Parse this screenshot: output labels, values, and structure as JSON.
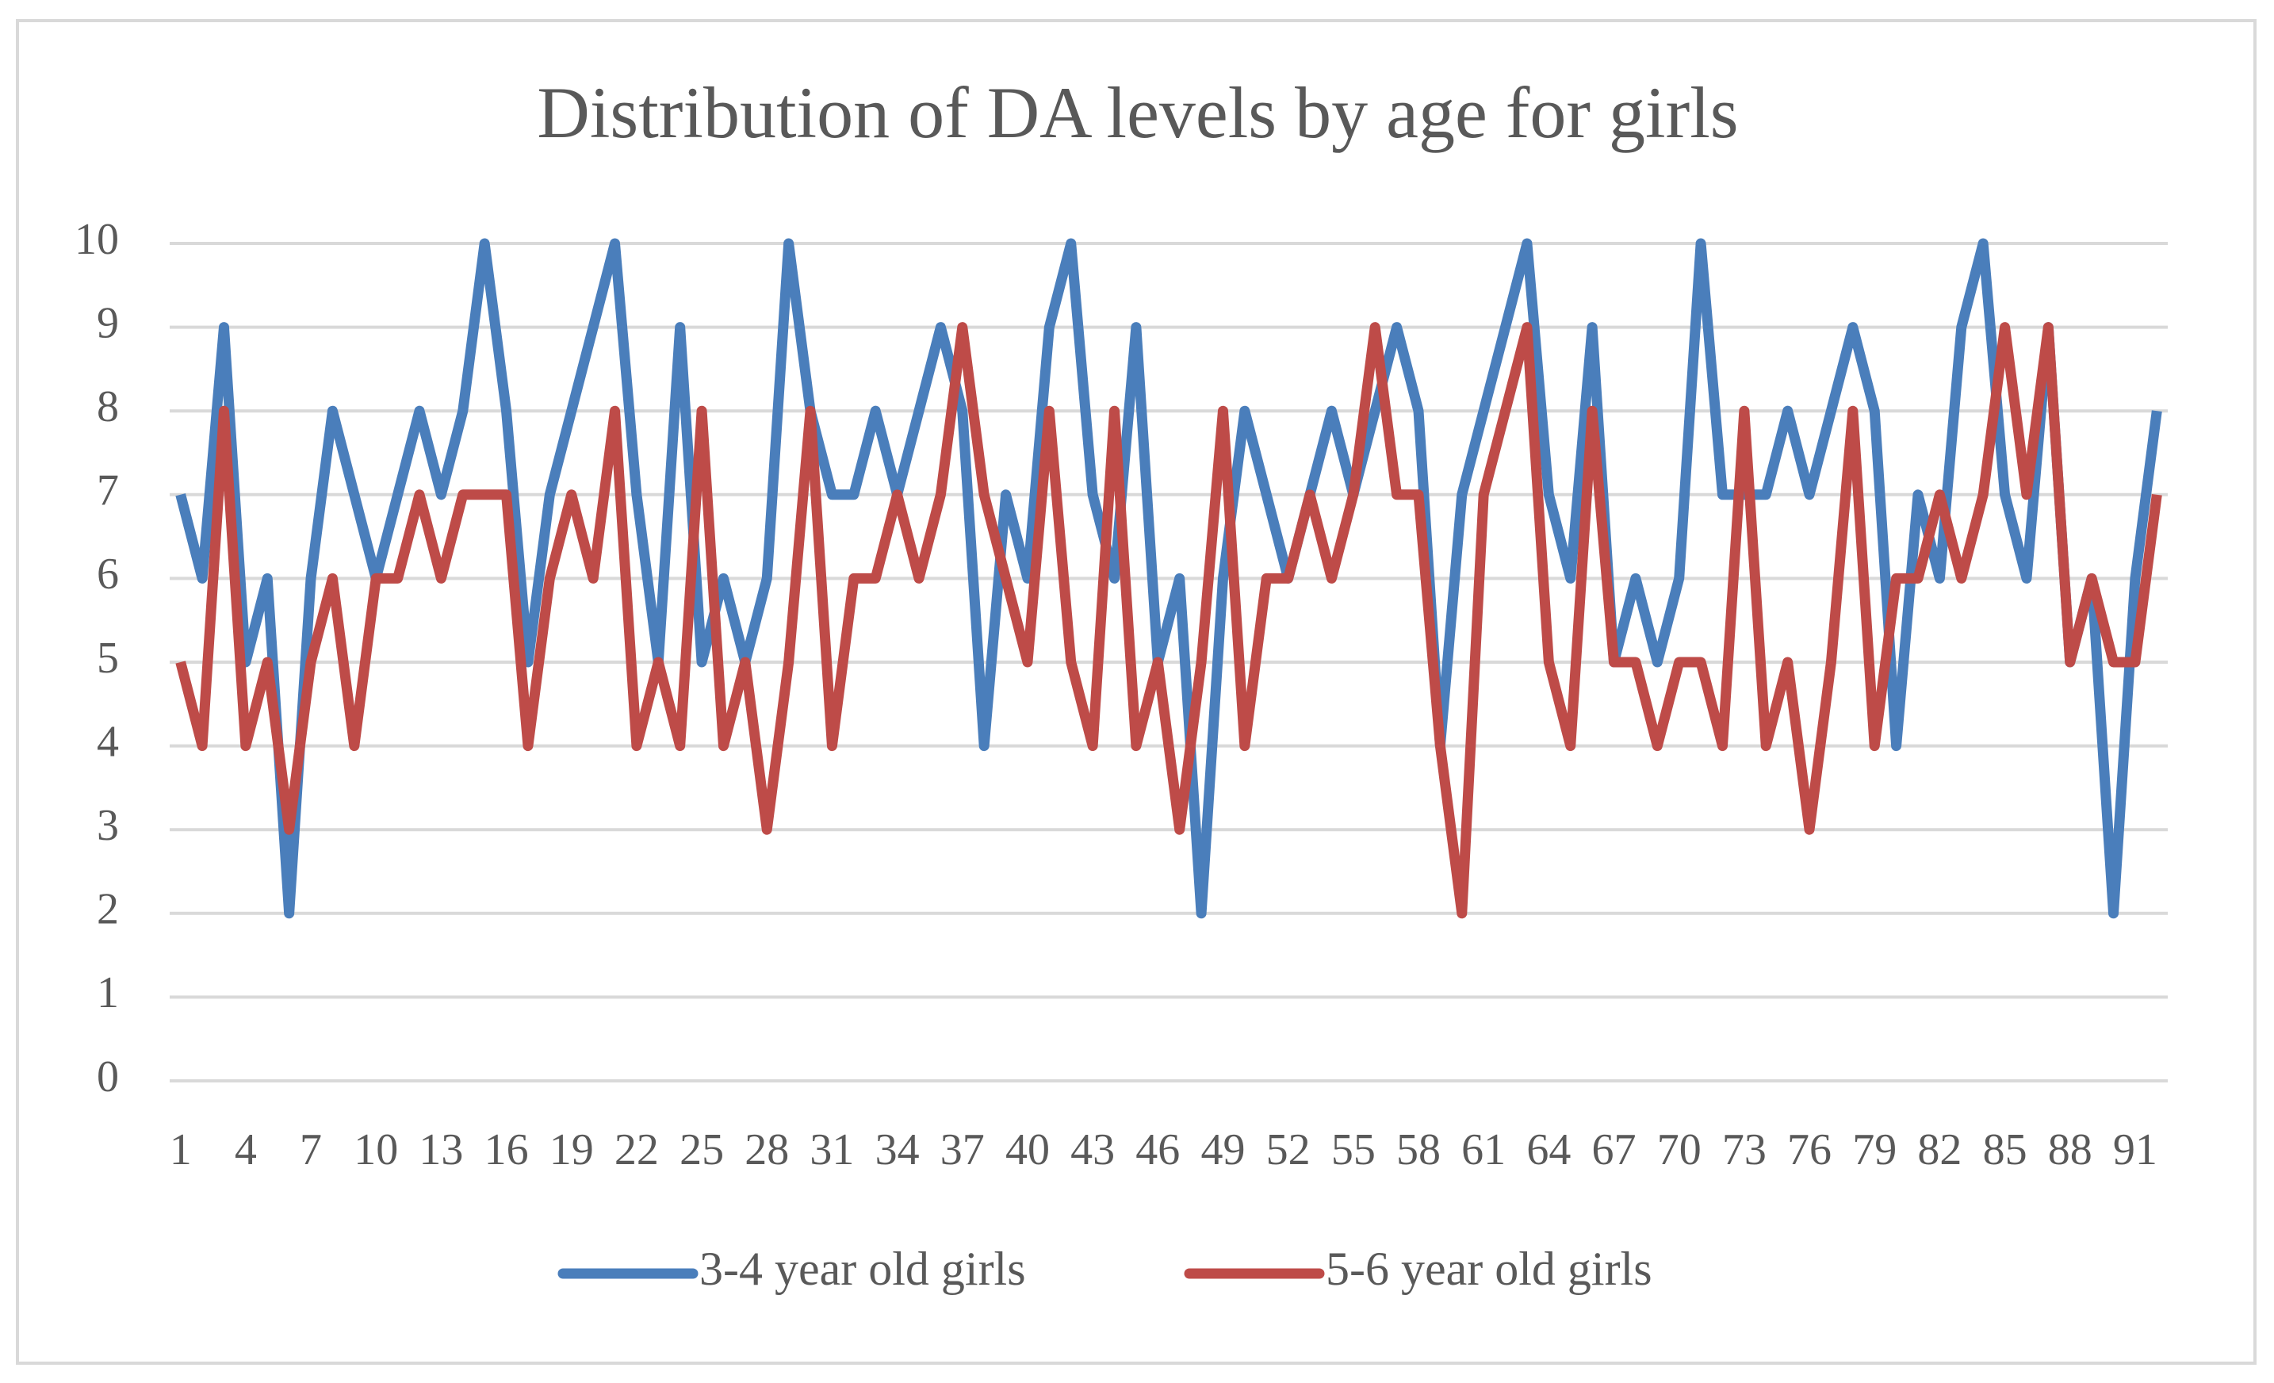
{
  "chart_data": {
    "type": "line",
    "title": "Distribution of DA levels by age for girls",
    "categories": [
      1,
      null,
      null,
      4,
      null,
      null,
      7,
      null,
      null,
      10,
      null,
      null,
      13,
      null,
      null,
      16,
      null,
      null,
      19,
      null,
      null,
      22,
      null,
      null,
      25,
      null,
      null,
      28,
      null,
      null,
      31,
      null,
      null,
      34,
      null,
      null,
      37,
      null,
      null,
      40,
      null,
      null,
      43,
      null,
      null,
      46,
      null,
      null,
      49,
      null,
      null,
      52,
      null,
      null,
      55,
      null,
      null,
      58,
      null,
      null,
      61,
      null,
      null,
      64,
      null,
      null,
      67,
      null,
      null,
      70,
      null,
      null,
      73,
      null,
      null,
      76,
      null,
      null,
      79,
      null,
      null,
      82,
      null,
      null,
      85,
      null,
      null,
      88,
      null,
      null,
      91,
      null
    ],
    "series": [
      {
        "name": "3-4 year old girls",
        "color": "#4a7ebb",
        "values": [
          7,
          6,
          9,
          5,
          6,
          2,
          6,
          8,
          7,
          6,
          7,
          8,
          7,
          8,
          10,
          8,
          5,
          7,
          8,
          9,
          10,
          7,
          5,
          9,
          5,
          6,
          5,
          6,
          10,
          8,
          7,
          7,
          8,
          7,
          8,
          9,
          8,
          4,
          7,
          6,
          9,
          10,
          7,
          6,
          9,
          5,
          6,
          2,
          6,
          8,
          7,
          6,
          7,
          8,
          7,
          8,
          9,
          8,
          4,
          7,
          8,
          9,
          10,
          7,
          6,
          9,
          5,
          6,
          5,
          6,
          10,
          7,
          7,
          7,
          8,
          7,
          8,
          9,
          8,
          4,
          7,
          6,
          9,
          10,
          7,
          6,
          9,
          5,
          6,
          2,
          6,
          8
        ]
      },
      {
        "name": "5-6 year old girls",
        "color": "#be4b48",
        "values": [
          5,
          4,
          8,
          4,
          5,
          3,
          5,
          6,
          4,
          6,
          6,
          7,
          6,
          7,
          7,
          7,
          4,
          6,
          7,
          6,
          8,
          4,
          5,
          4,
          8,
          4,
          5,
          3,
          5,
          8,
          4,
          6,
          6,
          7,
          6,
          7,
          9,
          7,
          6,
          5,
          8,
          5,
          4,
          8,
          4,
          5,
          3,
          5,
          8,
          4,
          6,
          6,
          7,
          6,
          7,
          9,
          7,
          7,
          4,
          2,
          7,
          8,
          9,
          5,
          4,
          8,
          5,
          5,
          4,
          5,
          5,
          4,
          8,
          4,
          5,
          3,
          5,
          8,
          4,
          6,
          6,
          7,
          6,
          7,
          9,
          7,
          9,
          5,
          6,
          5,
          5,
          7
        ]
      }
    ],
    "ylim": [
      0,
      10
    ],
    "yticks": [
      0,
      1,
      2,
      3,
      4,
      5,
      6,
      7,
      8,
      9,
      10
    ],
    "grid": true,
    "legend": "bottom"
  }
}
